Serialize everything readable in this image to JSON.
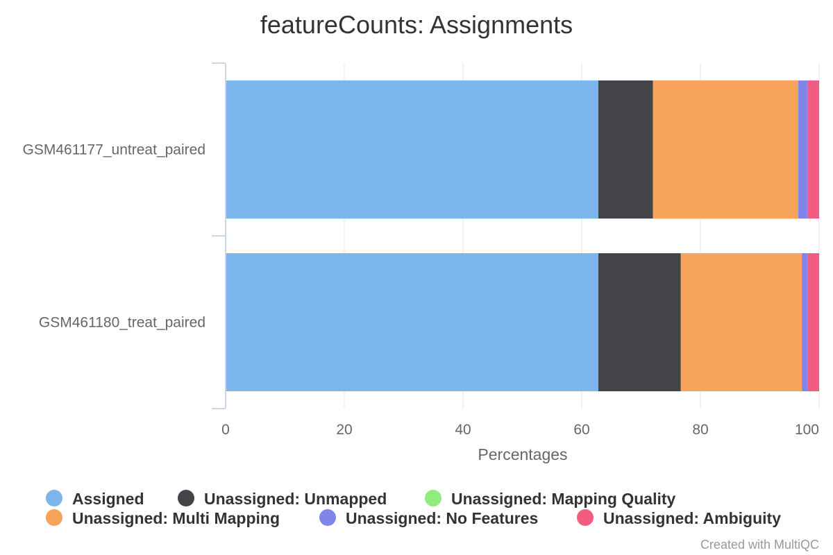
{
  "chart_data": {
    "type": "bar",
    "orientation": "horizontal",
    "stacked": "percent",
    "title": "featureCounts: Assignments",
    "xlabel": "Percentages",
    "ylabel": "",
    "xlim": [
      0,
      100
    ],
    "x_ticks": [
      "0",
      "20",
      "40",
      "60",
      "80",
      "100"
    ],
    "grid": true,
    "legend_position": "bottom",
    "categories": [
      "GSM461177_untreat_paired",
      "GSM461180_treat_paired"
    ],
    "series": [
      {
        "name": "Assigned",
        "color": "#7cb5ec",
        "values": [
          62.8,
          62.8
        ]
      },
      {
        "name": "Unassigned: Unmapped",
        "color": "#434348",
        "values": [
          9.2,
          13.9
        ]
      },
      {
        "name": "Unassigned: Mapping Quality",
        "color": "#90ed7d",
        "values": [
          0,
          0
        ]
      },
      {
        "name": "Unassigned: Multi Mapping",
        "color": "#f7a35c",
        "values": [
          24.5,
          20.4
        ]
      },
      {
        "name": "Unassigned: No Features",
        "color": "#8085e9",
        "values": [
          1.6,
          1.0
        ]
      },
      {
        "name": "Unassigned: Ambiguity",
        "color": "#f15c80",
        "values": [
          1.9,
          1.9
        ]
      }
    ]
  },
  "credit": "Created with MultiQC"
}
